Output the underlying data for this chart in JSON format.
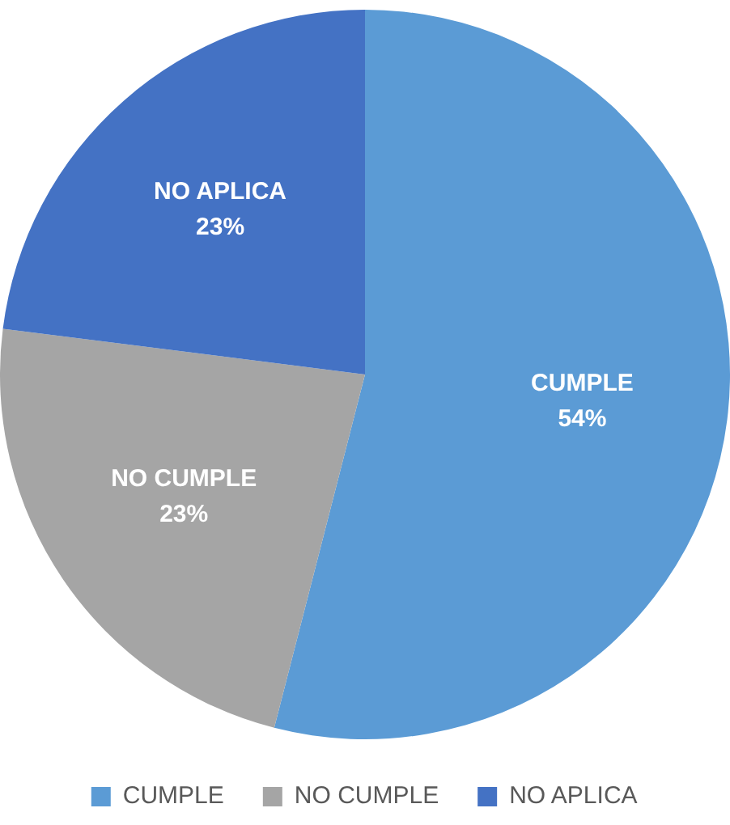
{
  "chart_data": {
    "type": "pie",
    "categories": [
      "CUMPLE",
      "NO CUMPLE",
      "NO APLICA"
    ],
    "values": [
      54,
      23,
      23
    ],
    "colors": [
      "#5b9bd5",
      "#a5a5a5",
      "#4472c4"
    ],
    "value_labels": [
      "54%",
      "23%",
      "23%"
    ],
    "legend": "bottom"
  }
}
